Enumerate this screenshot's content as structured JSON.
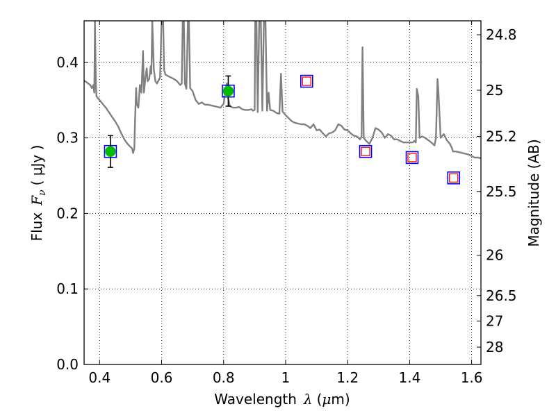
{
  "chart_data": {
    "type": "scatter",
    "title": "",
    "xlabel": {
      "prefix": "Wavelength",
      "symbol": "λ",
      "unit_open": "(",
      "unit_mu": "μ",
      "unit_rest": "m)"
    },
    "ylabel": {
      "prefix": "Flux",
      "symbol": "F",
      "subscript": "ν",
      "unit": "( μJy )"
    },
    "y2label": "Magnitude (AB)",
    "xlim": [
      0.35,
      1.63
    ],
    "ylim": [
      0.0,
      0.455
    ],
    "grid": true,
    "x_ticks": [
      {
        "value": 0.4,
        "label": "0.4"
      },
      {
        "value": 0.6,
        "label": "0.6"
      },
      {
        "value": 0.8,
        "label": "0.8"
      },
      {
        "value": 1.0,
        "label": "1"
      },
      {
        "value": 1.2,
        "label": "1.2"
      },
      {
        "value": 1.4,
        "label": "1.4"
      },
      {
        "value": 1.6,
        "label": "1.6"
      }
    ],
    "y_ticks": [
      {
        "value": 0.0,
        "label": "0.0"
      },
      {
        "value": 0.1,
        "label": "0.1"
      },
      {
        "value": 0.2,
        "label": "0.2"
      },
      {
        "value": 0.3,
        "label": "0.3"
      },
      {
        "value": 0.4,
        "label": "0.4"
      }
    ],
    "y2_ticks": [
      {
        "value": 24.8,
        "label": "24.8"
      },
      {
        "value": 25.0,
        "label": "25"
      },
      {
        "value": 25.2,
        "label": "25.2"
      },
      {
        "value": 25.5,
        "label": "25.5"
      },
      {
        "value": 26.0,
        "label": "26"
      },
      {
        "value": 26.5,
        "label": "26.5"
      },
      {
        "value": 27.0,
        "label": "27"
      },
      {
        "value": 28.0,
        "label": "28"
      }
    ],
    "model_spectrum": {
      "color": "#808080",
      "points": [
        [
          0.35,
          0.376
        ],
        [
          0.36,
          0.373
        ],
        [
          0.37,
          0.37
        ],
        [
          0.375,
          0.366
        ],
        [
          0.38,
          0.37
        ],
        [
          0.383,
          0.36
        ],
        [
          0.385,
          0.455
        ],
        [
          0.388,
          0.37
        ],
        [
          0.39,
          0.355
        ],
        [
          0.4,
          0.35
        ],
        [
          0.41,
          0.345
        ],
        [
          0.42,
          0.34
        ],
        [
          0.43,
          0.334
        ],
        [
          0.44,
          0.328
        ],
        [
          0.45,
          0.322
        ],
        [
          0.46,
          0.315
        ],
        [
          0.47,
          0.306
        ],
        [
          0.48,
          0.298
        ],
        [
          0.49,
          0.292
        ],
        [
          0.5,
          0.288
        ],
        [
          0.505,
          0.286
        ],
        [
          0.508,
          0.28
        ],
        [
          0.512,
          0.286
        ],
        [
          0.514,
          0.32
        ],
        [
          0.518,
          0.366
        ],
        [
          0.52,
          0.345
        ],
        [
          0.525,
          0.34
        ],
        [
          0.53,
          0.37
        ],
        [
          0.535,
          0.36
        ],
        [
          0.54,
          0.415
        ],
        [
          0.543,
          0.36
        ],
        [
          0.548,
          0.38
        ],
        [
          0.552,
          0.392
        ],
        [
          0.555,
          0.375
        ],
        [
          0.56,
          0.378
        ],
        [
          0.565,
          0.395
        ],
        [
          0.567,
          0.385
        ],
        [
          0.57,
          0.455
        ],
        [
          0.575,
          0.39
        ],
        [
          0.58,
          0.375
        ],
        [
          0.585,
          0.372
        ],
        [
          0.59,
          0.376
        ],
        [
          0.595,
          0.38
        ],
        [
          0.6,
          0.455
        ],
        [
          0.605,
          0.455
        ],
        [
          0.608,
          0.39
        ],
        [
          0.612,
          0.384
        ],
        [
          0.62,
          0.382
        ],
        [
          0.63,
          0.38
        ],
        [
          0.64,
          0.378
        ],
        [
          0.65,
          0.375
        ],
        [
          0.66,
          0.37
        ],
        [
          0.665,
          0.372
        ],
        [
          0.668,
          0.455
        ],
        [
          0.672,
          0.455
        ],
        [
          0.675,
          0.372
        ],
        [
          0.68,
          0.365
        ],
        [
          0.685,
          0.455
        ],
        [
          0.688,
          0.455
        ],
        [
          0.692,
          0.366
        ],
        [
          0.7,
          0.362
        ],
        [
          0.71,
          0.35
        ],
        [
          0.72,
          0.345
        ],
        [
          0.73,
          0.347
        ],
        [
          0.74,
          0.344
        ],
        [
          0.75,
          0.344
        ],
        [
          0.76,
          0.343
        ],
        [
          0.77,
          0.342
        ],
        [
          0.78,
          0.341
        ],
        [
          0.79,
          0.34
        ],
        [
          0.8,
          0.345
        ],
        [
          0.81,
          0.372
        ],
        [
          0.815,
          0.352
        ],
        [
          0.82,
          0.342
        ],
        [
          0.83,
          0.34
        ],
        [
          0.84,
          0.34
        ],
        [
          0.85,
          0.341
        ],
        [
          0.86,
          0.338
        ],
        [
          0.87,
          0.337
        ],
        [
          0.88,
          0.337
        ],
        [
          0.89,
          0.338
        ],
        [
          0.895,
          0.336
        ],
        [
          0.9,
          0.337
        ],
        [
          0.902,
          0.455
        ],
        [
          0.906,
          0.455
        ],
        [
          0.91,
          0.334
        ],
        [
          0.915,
          0.455
        ],
        [
          0.92,
          0.455
        ],
        [
          0.925,
          0.336
        ],
        [
          0.93,
          0.455
        ],
        [
          0.935,
          0.455
        ],
        [
          0.94,
          0.336
        ],
        [
          0.945,
          0.36
        ],
        [
          0.95,
          0.337
        ],
        [
          0.96,
          0.336
        ],
        [
          0.97,
          0.333
        ],
        [
          0.98,
          0.332
        ],
        [
          0.985,
          0.385
        ],
        [
          0.99,
          0.335
        ],
        [
          1.0,
          0.33
        ],
        [
          1.01,
          0.326
        ],
        [
          1.02,
          0.322
        ],
        [
          1.03,
          0.32
        ],
        [
          1.04,
          0.319
        ],
        [
          1.05,
          0.318
        ],
        [
          1.06,
          0.318
        ],
        [
          1.07,
          0.316
        ],
        [
          1.08,
          0.313
        ],
        [
          1.09,
          0.318
        ],
        [
          1.1,
          0.31
        ],
        [
          1.11,
          0.311
        ],
        [
          1.12,
          0.306
        ],
        [
          1.13,
          0.302
        ],
        [
          1.14,
          0.306
        ],
        [
          1.15,
          0.307
        ],
        [
          1.16,
          0.31
        ],
        [
          1.17,
          0.318
        ],
        [
          1.18,
          0.316
        ],
        [
          1.19,
          0.311
        ],
        [
          1.2,
          0.31
        ],
        [
          1.21,
          0.306
        ],
        [
          1.22,
          0.303
        ],
        [
          1.23,
          0.302
        ],
        [
          1.24,
          0.298
        ],
        [
          1.245,
          0.302
        ],
        [
          1.248,
          0.42
        ],
        [
          1.252,
          0.3
        ],
        [
          1.26,
          0.296
        ],
        [
          1.27,
          0.292
        ],
        [
          1.28,
          0.3
        ],
        [
          1.29,
          0.313
        ],
        [
          1.3,
          0.311
        ],
        [
          1.31,
          0.307
        ],
        [
          1.32,
          0.3
        ],
        [
          1.33,
          0.305
        ],
        [
          1.34,
          0.303
        ],
        [
          1.35,
          0.298
        ],
        [
          1.36,
          0.298
        ],
        [
          1.37,
          0.296
        ],
        [
          1.38,
          0.294
        ],
        [
          1.39,
          0.294
        ],
        [
          1.4,
          0.294
        ],
        [
          1.41,
          0.294
        ],
        [
          1.415,
          0.296
        ],
        [
          1.42,
          0.294
        ],
        [
          1.423,
          0.365
        ],
        [
          1.428,
          0.355
        ],
        [
          1.432,
          0.3
        ],
        [
          1.44,
          0.302
        ],
        [
          1.45,
          0.3
        ],
        [
          1.46,
          0.297
        ],
        [
          1.47,
          0.294
        ],
        [
          1.48,
          0.29
        ],
        [
          1.485,
          0.3
        ],
        [
          1.49,
          0.378
        ],
        [
          1.493,
          0.36
        ],
        [
          1.5,
          0.3
        ],
        [
          1.51,
          0.305
        ],
        [
          1.52,
          0.297
        ],
        [
          1.53,
          0.292
        ],
        [
          1.535,
          0.288
        ],
        [
          1.54,
          0.282
        ],
        [
          1.55,
          0.282
        ],
        [
          1.56,
          0.281
        ],
        [
          1.57,
          0.28
        ],
        [
          1.58,
          0.279
        ],
        [
          1.59,
          0.278
        ],
        [
          1.6,
          0.276
        ],
        [
          1.61,
          0.274
        ],
        [
          1.62,
          0.274
        ],
        [
          1.63,
          0.273
        ]
      ]
    },
    "observed_points": [
      {
        "x": 0.435,
        "y": 0.282,
        "err": 0.021,
        "color": "#00bb00"
      },
      {
        "x": 0.815,
        "y": 0.362,
        "err": 0.02,
        "color": "#00bb00"
      }
    ],
    "model_bandpass": [
      {
        "x": 0.435,
        "y": 0.282
      },
      {
        "x": 0.815,
        "y": 0.362
      },
      {
        "x": 1.068,
        "y": 0.375
      },
      {
        "x": 1.258,
        "y": 0.282
      },
      {
        "x": 1.408,
        "y": 0.274
      },
      {
        "x": 1.542,
        "y": 0.247
      }
    ],
    "predicted_points": [
      {
        "x": 1.068,
        "y": 0.375
      },
      {
        "x": 1.258,
        "y": 0.282
      },
      {
        "x": 1.408,
        "y": 0.274
      },
      {
        "x": 1.542,
        "y": 0.247
      }
    ],
    "colors": {
      "blue_square": "#0000ff",
      "red_square": "#ff0000",
      "error_bar": "#000000",
      "grid": "#000000"
    }
  }
}
